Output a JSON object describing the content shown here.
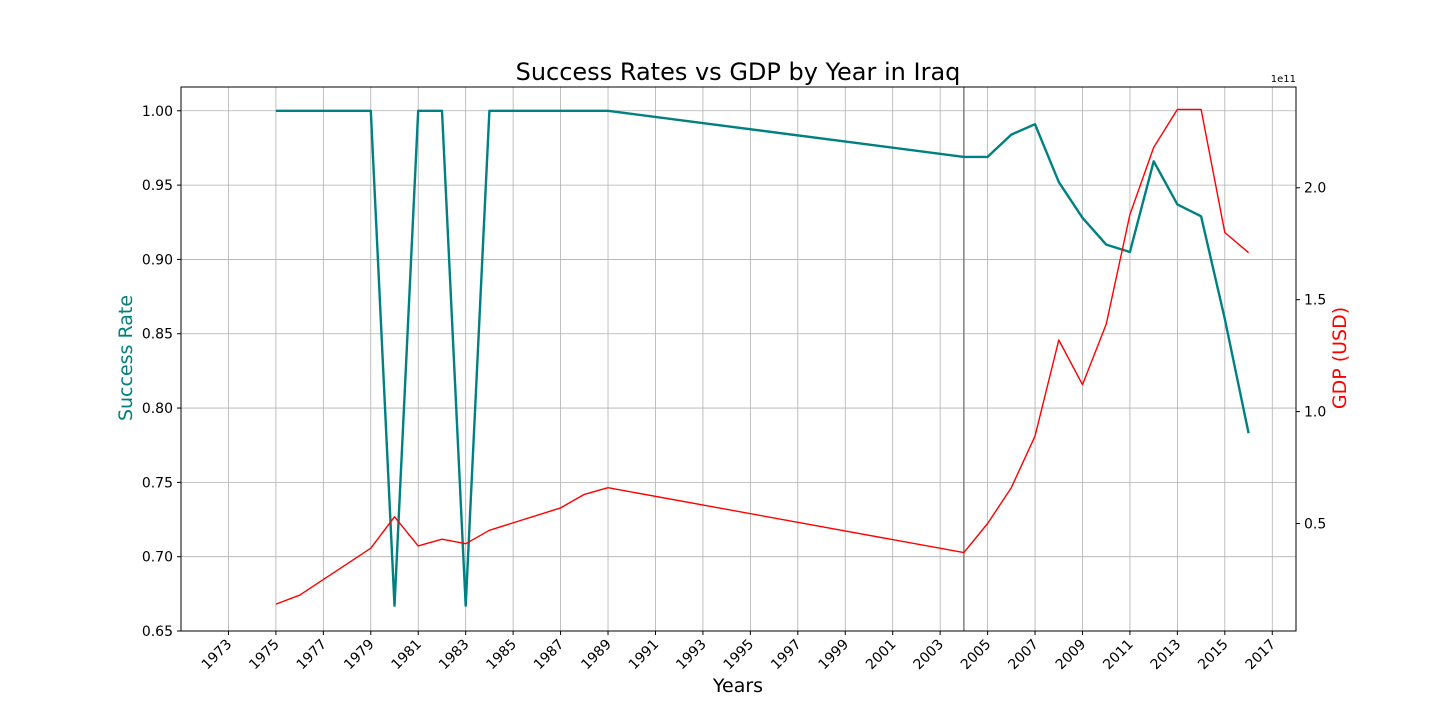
{
  "chart_data": {
    "type": "line",
    "title": "Success Rates vs GDP by Year in Iraq",
    "xlabel": "Years",
    "ylabel": "Success Rate",
    "y2label": "GDP (USD)",
    "y2_offset_label": "1e11",
    "xlim": [
      1971,
      2018
    ],
    "ylim": [
      0.65,
      1.016
    ],
    "y2lim": [
      0.02,
      2.45
    ],
    "x_ticks": [
      "1973",
      "1975",
      "1977",
      "1979",
      "1981",
      "1983",
      "1985",
      "1987",
      "1989",
      "1991",
      "1993",
      "1995",
      "1997",
      "1999",
      "2001",
      "2003",
      "2005",
      "2007",
      "2009",
      "2011",
      "2013",
      "2015",
      "2017"
    ],
    "y_ticks": [
      "0.65",
      "0.70",
      "0.75",
      "0.80",
      "0.85",
      "0.90",
      "0.95",
      "1.00"
    ],
    "y2_ticks": [
      "0.5",
      "1.0",
      "1.5",
      "2.0"
    ],
    "grid": true,
    "reference_line_x": 2004,
    "colors": {
      "success": "#008080",
      "gdp": "#ff0000",
      "reference": "#808080"
    },
    "series": [
      {
        "axis": "left",
        "x": [
          1975,
          1979,
          1980,
          1981,
          1982,
          1983,
          1984,
          1989,
          2004,
          2005,
          2006,
          2007,
          2008,
          2009,
          2010,
          2011,
          2012,
          2013,
          2014,
          2015,
          2016
        ],
        "values": [
          1.0,
          1.0,
          0.667,
          1.0,
          1.0,
          0.667,
          1.0,
          1.0,
          0.969,
          0.969,
          0.984,
          0.991,
          0.952,
          0.928,
          0.91,
          0.905,
          0.966,
          0.937,
          0.929,
          0.86,
          0.783
        ]
      },
      {
        "axis": "right",
        "x": [
          1975,
          1976,
          1979,
          1980,
          1981,
          1982,
          1983,
          1984,
          1987,
          1988,
          1989,
          2004,
          2005,
          2006,
          2007,
          2008,
          2009,
          2010,
          2011,
          2012,
          2013,
          2014,
          2015,
          2016
        ],
        "values": [
          0.14,
          0.18,
          0.39,
          0.53,
          0.4,
          0.43,
          0.41,
          0.47,
          0.57,
          0.63,
          0.66,
          0.37,
          0.5,
          0.66,
          0.89,
          1.32,
          1.12,
          1.39,
          1.88,
          2.18,
          2.35,
          2.35,
          1.8,
          1.71
        ]
      }
    ]
  }
}
